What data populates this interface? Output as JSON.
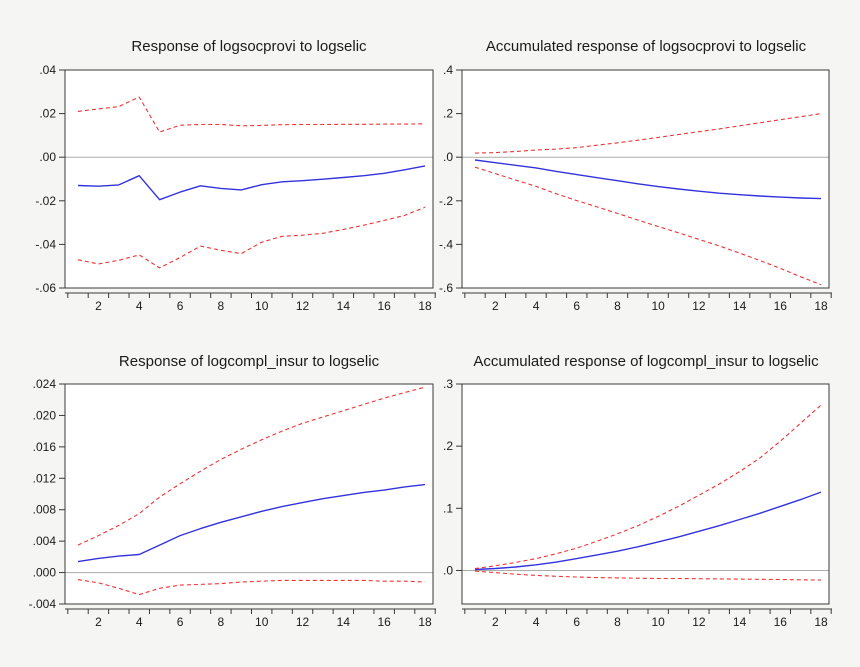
{
  "figure": {
    "kind": "impulse-response-grid",
    "background": "#f5f5f4",
    "plot_background": "#ffffff",
    "frame_color": "#3a3a3a",
    "zero_line_color": "#ababab",
    "response_line_color": "#3333dd",
    "band_line_color": "#ee3333"
  },
  "chart_data": [
    {
      "type": "line",
      "title": "Response of logsocprovi to logselic",
      "x": [
        1,
        2,
        3,
        4,
        5,
        6,
        7,
        8,
        9,
        10,
        11,
        12,
        13,
        14,
        15,
        16,
        17,
        18
      ],
      "x_tick_labels": [
        2,
        4,
        6,
        8,
        10,
        12,
        14,
        16,
        18
      ],
      "ylim": [
        -0.06,
        0.04
      ],
      "y_ticks": [
        {
          "label": ".04",
          "value": 0.04
        },
        {
          "label": ".02",
          "value": 0.02
        },
        {
          "label": ".00",
          "value": 0.0
        },
        {
          "label": "-.02",
          "value": -0.02
        },
        {
          "label": "-.04",
          "value": -0.04
        },
        {
          "label": "-.06",
          "value": -0.06
        }
      ],
      "grid": false,
      "legend": "none",
      "zero_line": true,
      "series": [
        {
          "name": "response",
          "style": "solid",
          "color": "#3333dd",
          "values": [
            -0.013,
            -0.0133,
            -0.0127,
            -0.0085,
            -0.0195,
            -0.016,
            -0.0131,
            -0.0143,
            -0.015,
            -0.0126,
            -0.0113,
            -0.0108,
            -0.0101,
            -0.0093,
            -0.0085,
            -0.0074,
            -0.0058,
            -0.004
          ]
        },
        {
          "name": "upper-band",
          "style": "dashed",
          "color": "#ee3333",
          "values": [
            0.021,
            0.0221,
            0.0232,
            0.0276,
            0.0115,
            0.0147,
            0.015,
            0.015,
            0.0144,
            0.0146,
            0.0149,
            0.015,
            0.015,
            0.0151,
            0.0151,
            0.0152,
            0.0152,
            0.0153
          ]
        },
        {
          "name": "lower-band",
          "style": "dashed",
          "color": "#ee3333",
          "values": [
            -0.047,
            -0.049,
            -0.0473,
            -0.0448,
            -0.0508,
            -0.046,
            -0.0408,
            -0.0427,
            -0.0442,
            -0.039,
            -0.0363,
            -0.0358,
            -0.0349,
            -0.0331,
            -0.0312,
            -0.029,
            -0.0267,
            -0.023
          ]
        }
      ]
    },
    {
      "type": "line",
      "title": "Accumulated response of logsocprovi to logselic",
      "x": [
        1,
        2,
        3,
        4,
        5,
        6,
        7,
        8,
        9,
        10,
        11,
        12,
        13,
        14,
        15,
        16,
        17,
        18
      ],
      "x_tick_labels": [
        2,
        4,
        6,
        8,
        10,
        12,
        14,
        16,
        18
      ],
      "ylim": [
        -0.6,
        0.4
      ],
      "y_ticks": [
        {
          "label": ".4",
          "value": 0.4
        },
        {
          "label": ".2",
          "value": 0.2
        },
        {
          "label": ".0",
          "value": 0.0
        },
        {
          "label": "-.2",
          "value": -0.2
        },
        {
          "label": "-.4",
          "value": -0.4
        },
        {
          "label": "-.6",
          "value": -0.6
        }
      ],
      "grid": false,
      "legend": "none",
      "zero_line": true,
      "series": [
        {
          "name": "response",
          "style": "solid",
          "color": "#3333dd",
          "values": [
            -0.013,
            -0.025,
            -0.037,
            -0.049,
            -0.065,
            -0.08,
            -0.094,
            -0.108,
            -0.122,
            -0.135,
            -0.146,
            -0.156,
            -0.165,
            -0.172,
            -0.178,
            -0.183,
            -0.187,
            -0.19
          ]
        },
        {
          "name": "upper-band",
          "style": "dashed",
          "color": "#ee3333",
          "values": [
            0.019,
            0.021,
            0.026,
            0.033,
            0.037,
            0.044,
            0.055,
            0.066,
            0.078,
            0.091,
            0.104,
            0.117,
            0.13,
            0.144,
            0.158,
            0.172,
            0.186,
            0.2
          ]
        },
        {
          "name": "lower-band",
          "style": "dashed",
          "color": "#ee3333",
          "values": [
            -0.046,
            -0.075,
            -0.105,
            -0.134,
            -0.168,
            -0.199,
            -0.228,
            -0.258,
            -0.288,
            -0.318,
            -0.347,
            -0.377,
            -0.407,
            -0.44,
            -0.474,
            -0.51,
            -0.548,
            -0.585
          ]
        }
      ]
    },
    {
      "type": "line",
      "title": "Response of logcompl_insur to logselic",
      "x": [
        1,
        2,
        3,
        4,
        5,
        6,
        7,
        8,
        9,
        10,
        11,
        12,
        13,
        14,
        15,
        16,
        17,
        18
      ],
      "x_tick_labels": [
        2,
        4,
        6,
        8,
        10,
        12,
        14,
        16,
        18
      ],
      "ylim": [
        -0.004,
        0.024
      ],
      "y_ticks": [
        {
          "label": ".024",
          "value": 0.024
        },
        {
          "label": ".020",
          "value": 0.02
        },
        {
          "label": ".016",
          "value": 0.016
        },
        {
          "label": ".012",
          "value": 0.012
        },
        {
          "label": ".008",
          "value": 0.008
        },
        {
          "label": ".004",
          "value": 0.004
        },
        {
          "label": ".000",
          "value": 0.0
        },
        {
          "label": "-.004",
          "value": -0.004
        }
      ],
      "grid": false,
      "legend": "none",
      "zero_line": true,
      "series": [
        {
          "name": "response",
          "style": "solid",
          "color": "#3333dd",
          "values": [
            0.0014,
            0.0018,
            0.0021,
            0.0023,
            0.0035,
            0.0047,
            0.0056,
            0.0064,
            0.0071,
            0.0078,
            0.0084,
            0.0089,
            0.0094,
            0.0098,
            0.0102,
            0.0105,
            0.0109,
            0.0112
          ]
        },
        {
          "name": "upper-band",
          "style": "dashed",
          "color": "#ee3333",
          "values": [
            0.0035,
            0.0047,
            0.006,
            0.0075,
            0.0096,
            0.0113,
            0.0129,
            0.0144,
            0.0157,
            0.0169,
            0.018,
            0.019,
            0.0198,
            0.0206,
            0.0214,
            0.0222,
            0.0229,
            0.0236
          ]
        },
        {
          "name": "lower-band",
          "style": "dashed",
          "color": "#ee3333",
          "values": [
            -0.0009,
            -0.0013,
            -0.002,
            -0.0028,
            -0.002,
            -0.0016,
            -0.0015,
            -0.0014,
            -0.0012,
            -0.0011,
            -0.001,
            -0.001,
            -0.001,
            -0.001,
            -0.001,
            -0.0011,
            -0.0011,
            -0.0012
          ]
        }
      ]
    },
    {
      "type": "line",
      "title": "Accumulated response of logcompl_insur to logselic",
      "x": [
        1,
        2,
        3,
        4,
        5,
        6,
        7,
        8,
        9,
        10,
        11,
        12,
        13,
        14,
        15,
        16,
        17,
        18
      ],
      "x_tick_labels": [
        2,
        4,
        6,
        8,
        10,
        12,
        14,
        16,
        18
      ],
      "ylim": [
        -0.054,
        0.3
      ],
      "y_ticks": [
        {
          "label": ".3",
          "value": 0.3
        },
        {
          "label": ".2",
          "value": 0.2
        },
        {
          "label": ".1",
          "value": 0.1
        },
        {
          "label": ".0",
          "value": 0.0
        }
      ],
      "grid": false,
      "legend": "none",
      "zero_line": true,
      "series": [
        {
          "name": "response",
          "style": "solid",
          "color": "#3333dd",
          "values": [
            0.0015,
            0.0032,
            0.0055,
            0.009,
            0.0135,
            0.019,
            0.025,
            0.031,
            0.038,
            0.046,
            0.054,
            0.063,
            0.072,
            0.082,
            0.092,
            0.103,
            0.114,
            0.126
          ]
        },
        {
          "name": "upper-band",
          "style": "dashed",
          "color": "#ee3333",
          "values": [
            0.003,
            0.0075,
            0.013,
            0.019,
            0.027,
            0.036,
            0.047,
            0.059,
            0.072,
            0.087,
            0.103,
            0.121,
            0.139,
            0.159,
            0.181,
            0.208,
            0.237,
            0.266
          ]
        },
        {
          "name": "lower-band",
          "style": "dashed",
          "color": "#ee3333",
          "values": [
            -0.001,
            -0.0035,
            -0.006,
            -0.008,
            -0.0095,
            -0.0105,
            -0.0115,
            -0.012,
            -0.0125,
            -0.013,
            -0.013,
            -0.0133,
            -0.0136,
            -0.014,
            -0.0142,
            -0.0146,
            -0.015,
            -0.0155
          ]
        }
      ]
    }
  ]
}
